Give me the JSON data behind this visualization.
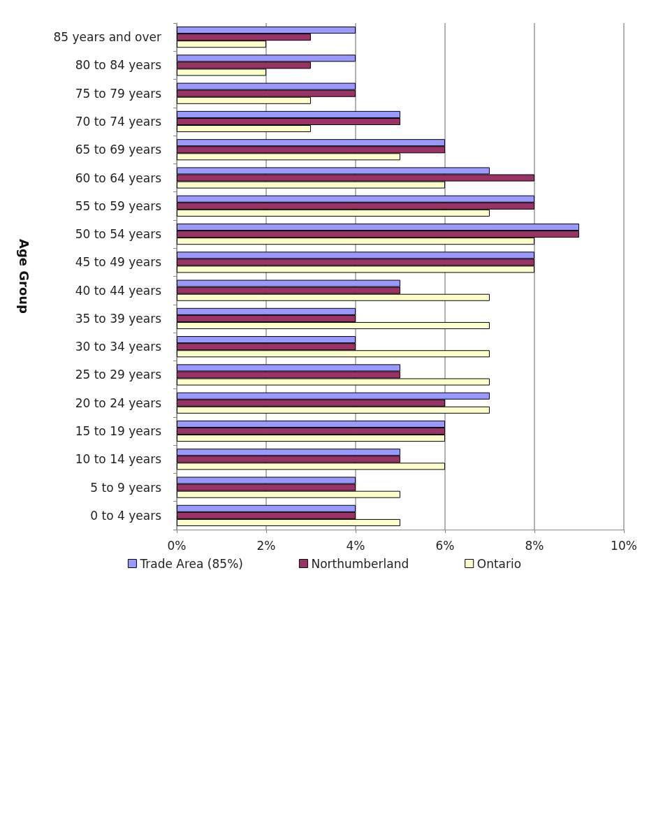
{
  "chart_data": {
    "type": "bar",
    "orientation": "horizontal",
    "ylabel": "Age Group",
    "categories": [
      "85 years and over",
      "80 to 84 years",
      "75 to 79 years",
      "70 to 74 years",
      "65 to 69 years",
      "60 to 64 years",
      "55 to 59 years",
      "50 to 54 years",
      "45 to 49 years",
      "40 to 44 years",
      "35 to 39 years",
      "30 to 34 years",
      "25 to 29 years",
      "20 to 24 years",
      "15 to 19 years",
      "10 to 14 years",
      "5 to 9 years",
      "0 to 4 years"
    ],
    "series": [
      {
        "name": "Trade Area (85%)",
        "color": "#9999ff",
        "values": [
          4,
          4,
          4,
          5,
          6,
          7,
          8,
          9,
          8,
          5,
          4,
          4,
          5,
          7,
          6,
          5,
          4,
          4
        ]
      },
      {
        "name": "Northumberland",
        "color": "#993366",
        "values": [
          3,
          3,
          4,
          5,
          6,
          8,
          8,
          9,
          8,
          5,
          4,
          4,
          5,
          6,
          6,
          5,
          4,
          4
        ]
      },
      {
        "name": "Ontario",
        "color": "#ffffcc",
        "values": [
          2,
          2,
          3,
          3,
          5,
          6,
          7,
          8,
          8,
          7,
          7,
          7,
          7,
          7,
          6,
          6,
          5,
          5
        ]
      }
    ],
    "xlim": [
      0,
      10
    ],
    "xticks": [
      {
        "value": 0,
        "label": "0%"
      },
      {
        "value": 2,
        "label": "2%"
      },
      {
        "value": 4,
        "label": "4%"
      },
      {
        "value": 6,
        "label": "6%"
      },
      {
        "value": 8,
        "label": "8%"
      },
      {
        "value": 10,
        "label": "10%"
      }
    ],
    "grid": "x",
    "legend": "bottom"
  }
}
